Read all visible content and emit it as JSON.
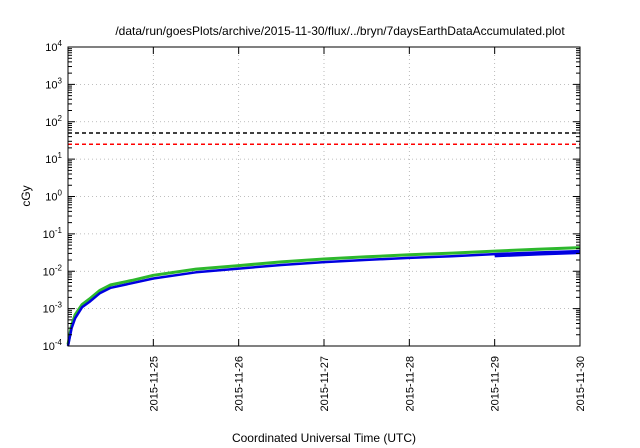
{
  "chart_data": {
    "type": "line",
    "title": "/data/run/goesPlots/archive/2015-11-30/flux/../bryn/7daysEarthDataAccumulated.plot",
    "xlabel": "Coordinated Universal Time (UTC)",
    "ylabel": "cGy",
    "yscale": "log",
    "ylim": [
      0.0001,
      10000
    ],
    "y_ticks": [
      {
        "base": "10",
        "exp": "-4",
        "value": 0.0001
      },
      {
        "base": "10",
        "exp": "-3",
        "value": 0.001
      },
      {
        "base": "10",
        "exp": "-2",
        "value": 0.01
      },
      {
        "base": "10",
        "exp": "-1",
        "value": 0.1
      },
      {
        "base": "10",
        "exp": "0",
        "value": 1
      },
      {
        "base": "10",
        "exp": "1",
        "value": 10
      },
      {
        "base": "10",
        "exp": "2",
        "value": 100
      },
      {
        "base": "10",
        "exp": "3",
        "value": 1000
      },
      {
        "base": "10",
        "exp": "4",
        "value": 10000
      }
    ],
    "xlim": [
      "2015-11-24T00:00",
      "2015-11-30T00:00"
    ],
    "x_ticks": [
      "2015-11-25",
      "2015-11-26",
      "2015-11-27",
      "2015-11-28",
      "2015-11-29",
      "2015-11-30"
    ],
    "grid": true,
    "thresholds": [
      {
        "value": 50,
        "color": "#000000",
        "style": "dashed"
      },
      {
        "value": 25,
        "color": "#ff0000",
        "style": "dashed"
      }
    ],
    "series": [
      {
        "color": "#2db82d",
        "x": [
          "2015-11-24T00:00",
          "2015-11-24T01:00",
          "2015-11-24T02:00",
          "2015-11-24T04:00",
          "2015-11-24T06:00",
          "2015-11-24T09:00",
          "2015-11-24T12:00",
          "2015-11-24T18:00",
          "2015-11-25T00:00",
          "2015-11-25T12:00",
          "2015-11-26T00:00",
          "2015-11-26T12:00",
          "2015-11-27T00:00",
          "2015-11-27T12:00",
          "2015-11-28T00:00",
          "2015-11-28T12:00",
          "2015-11-29T00:00",
          "2015-11-29T12:00",
          "2015-11-30T00:00"
        ],
        "values": [
          0.00011,
          0.00036,
          0.00068,
          0.0013,
          0.0018,
          0.0031,
          0.0043,
          0.0057,
          0.0078,
          0.0114,
          0.0142,
          0.0178,
          0.0213,
          0.0244,
          0.0276,
          0.0305,
          0.0346,
          0.0387,
          0.0428
        ]
      },
      {
        "color": "#0000e0",
        "x": [
          "2015-11-24T00:00",
          "2015-11-24T01:00",
          "2015-11-24T02:00",
          "2015-11-24T04:00",
          "2015-11-24T06:00",
          "2015-11-24T09:00",
          "2015-11-24T12:00",
          "2015-11-24T18:00",
          "2015-11-25T00:00",
          "2015-11-25T12:00",
          "2015-11-26T00:00",
          "2015-11-26T12:00",
          "2015-11-27T00:00",
          "2015-11-27T12:00",
          "2015-11-28T00:00",
          "2015-11-28T12:00",
          "2015-11-29T00:00",
          "2015-11-29T12:00",
          "2015-11-30T00:00"
        ],
        "values": [
          0.0001,
          0.0003,
          0.00055,
          0.0011,
          0.0015,
          0.0026,
          0.0036,
          0.0048,
          0.0064,
          0.0094,
          0.0118,
          0.0147,
          0.0176,
          0.0201,
          0.0228,
          0.0253,
          0.0287,
          0.0318,
          0.0345
        ]
      },
      {
        "color": "#0000e0",
        "x": [
          "2015-11-29T00:00",
          "2015-11-29T12:00",
          "2015-11-30T00:00"
        ],
        "values": [
          0.0255,
          0.0282,
          0.031
        ]
      }
    ]
  }
}
